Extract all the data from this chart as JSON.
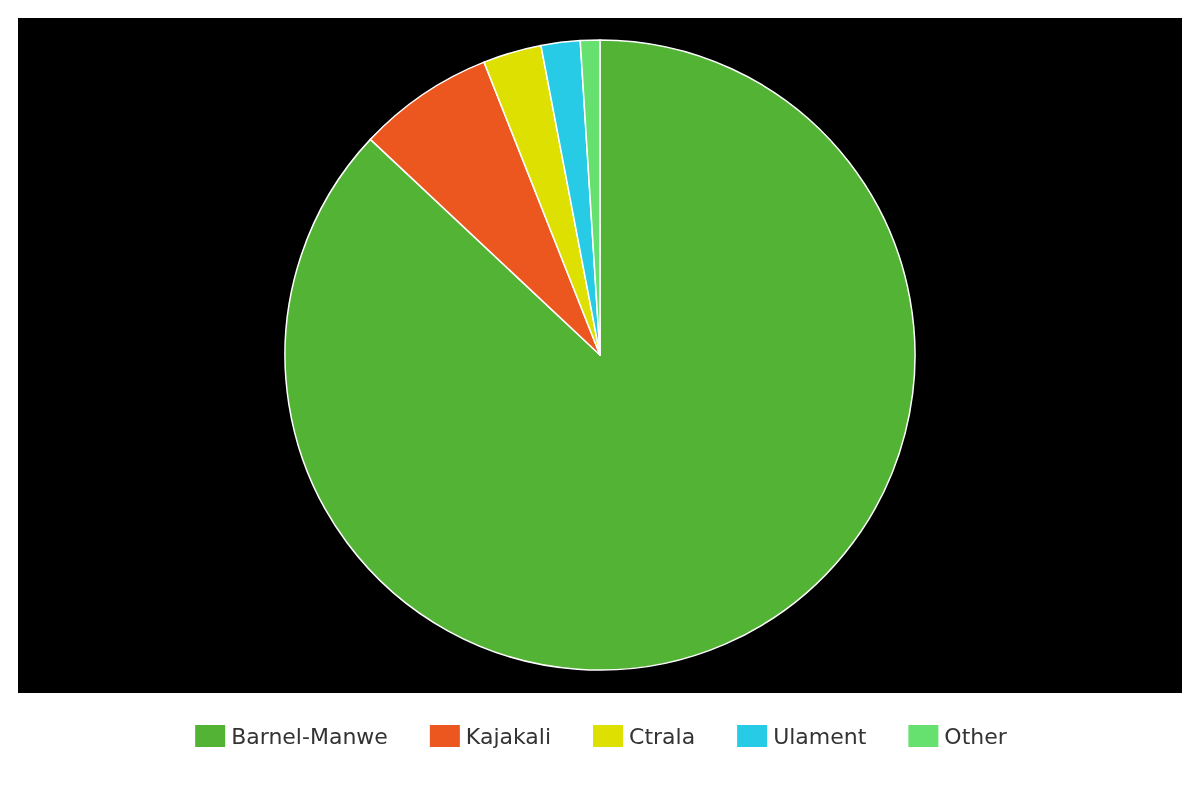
{
  "chart_data": {
    "type": "pie",
    "categories": [
      "Barnel-Manwe",
      "Kajakali",
      "Ctrala",
      "Ulament",
      "Other"
    ],
    "values": [
      87,
      7,
      3,
      2,
      1
    ],
    "colors": [
      "#52b335",
      "#ec561f",
      "#dde000",
      "#28cbe6",
      "#66e06e"
    ],
    "legend": "bottom"
  }
}
